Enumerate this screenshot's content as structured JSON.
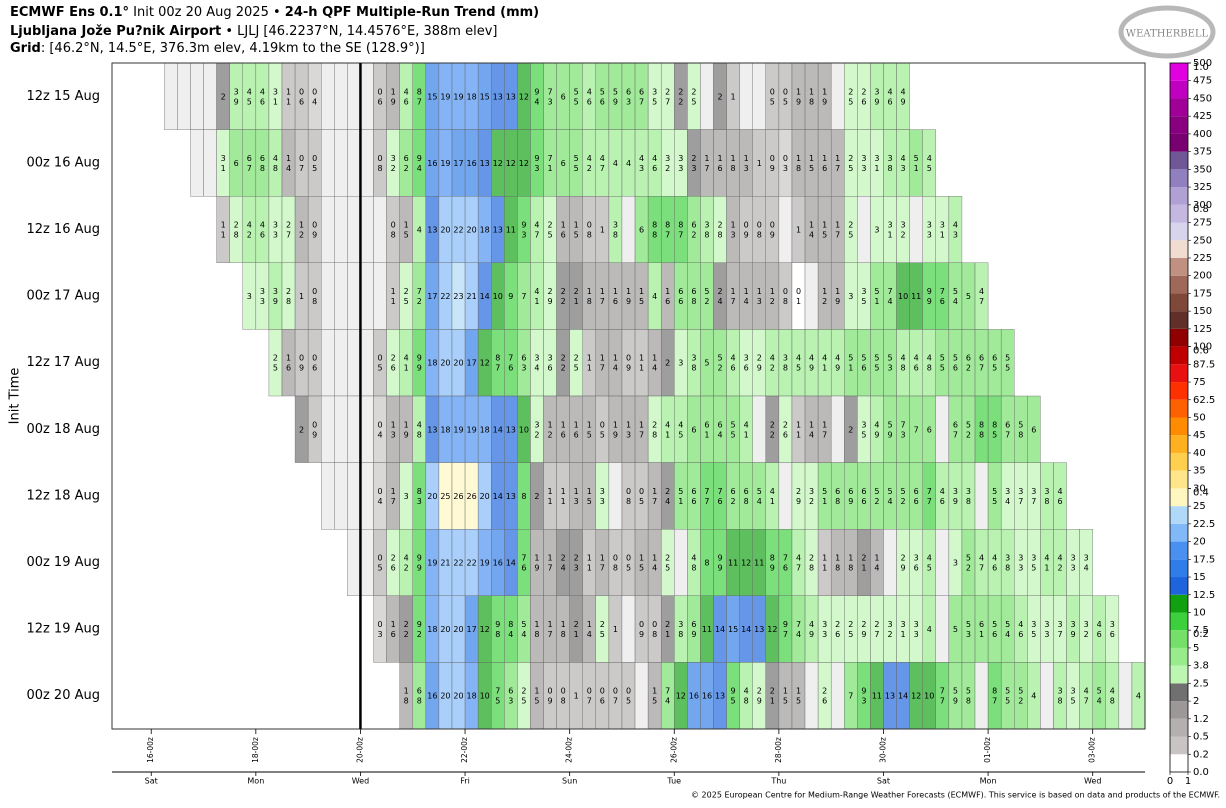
{
  "header": {
    "model": "ECMWF Ens 0.1°",
    "init": " Init 00z 20 Aug 2025 • ",
    "product": "24-h QPF Multiple-Run Trend (mm)",
    "location": "Ljubljana Jože Pu?nik Airport",
    "station": " • LJLJ [46.2237°N, 14.4576°E, 388m elev]",
    "grid_label": "Grid",
    "grid": ": [46.2°N, 14.5°E, 376.3m elev, 4.19km to the SE (128.9°)]",
    "logo": "WEATHERBELL",
    "footer": "© 2025 European Centre for Medium-Range Weather Forecasts (ECMWF). This service is based on data and products of the ECMWF."
  },
  "chart_data": {
    "type": "heatmap",
    "ylabel": "Init Time",
    "xlim": [
      -18,
      456
    ],
    "step": 6,
    "init_x": 96,
    "xticks": [
      {
        "value": 0,
        "label": "16-00z"
      },
      {
        "value": 48,
        "label": "18-00z"
      },
      {
        "value": 96,
        "label": "20-00z"
      },
      {
        "value": 144,
        "label": "22-00z"
      },
      {
        "value": 192,
        "label": "24-00z"
      },
      {
        "value": 240,
        "label": "26-00z"
      },
      {
        "value": 288,
        "label": "28-00z"
      },
      {
        "value": 336,
        "label": "30-00z"
      },
      {
        "value": 384,
        "label": "01-00z"
      },
      {
        "value": 432,
        "label": "03-00z"
      }
    ],
    "day_ticks": [
      {
        "value": 0,
        "label": "Sat"
      },
      {
        "value": 48,
        "label": "Mon"
      },
      {
        "value": 96,
        "label": "Wed"
      },
      {
        "value": 144,
        "label": "Fri"
      },
      {
        "value": 192,
        "label": "Sun"
      },
      {
        "value": 240,
        "label": "Tue"
      },
      {
        "value": 288,
        "label": "Thu"
      },
      {
        "value": 336,
        "label": "Sat"
      },
      {
        "value": 384,
        "label": "Mon"
      },
      {
        "value": 432,
        "label": "Wed"
      }
    ],
    "series": [
      {
        "name": "12z 15 Aug",
        "start": 6,
        "values": [
          null,
          null,
          null,
          null,
          2,
          3.9,
          4.5,
          4.6,
          3.1,
          1.1,
          0.6,
          0.4,
          null,
          null,
          null,
          null,
          0.6,
          1.9,
          4.6,
          8.7,
          15,
          19,
          19,
          18,
          15,
          13,
          13,
          12,
          9.4,
          7.3,
          6,
          5.5,
          4.6,
          5.6,
          5.9,
          6.3,
          6.7,
          3.5,
          2.7,
          2.2,
          2.5,
          null,
          2,
          1,
          null,
          null,
          0.5,
          0.5,
          1.9,
          1.8,
          1.9,
          null,
          2.5,
          2.6,
          3.9,
          4.6,
          4.9
        ]
      },
      {
        "name": "00z 16 Aug",
        "start": 18,
        "values": [
          null,
          null,
          3.1,
          6,
          6.7,
          6.8,
          4.8,
          1.4,
          0.7,
          0.5,
          null,
          null,
          null,
          null,
          0.8,
          3.2,
          6.2,
          9.4,
          16,
          19,
          17,
          16,
          13,
          12,
          12,
          12,
          9.3,
          7.1,
          6,
          5.5,
          4.2,
          4.7,
          4,
          4,
          4.3,
          4.6,
          3.2,
          3.3,
          2.3,
          1.7,
          1.6,
          1.8,
          1.3,
          1,
          0.9,
          0.3,
          1.8,
          1.5,
          1.6,
          1.7,
          2.5,
          3.3,
          3.1,
          3.8,
          4.3,
          5.1,
          4.5
        ]
      },
      {
        "name": "12z 16 Aug",
        "start": 30,
        "values": [
          1.1,
          2.8,
          4.2,
          4.6,
          3.3,
          2.7,
          1.2,
          0.9,
          null,
          null,
          null,
          null,
          null,
          0.8,
          1.5,
          4,
          13,
          20,
          22,
          20,
          18,
          13,
          11,
          9.3,
          4.7,
          2.5,
          1.6,
          1.5,
          0.8,
          1,
          3.8,
          null,
          6,
          8.8,
          8.7,
          8.7,
          6.2,
          3.8,
          2.8,
          1.3,
          0.9,
          0.8,
          0.9,
          null,
          1,
          1.4,
          1.5,
          1.7,
          2.5,
          null,
          3,
          3.1,
          3.2,
          null,
          3.3,
          3.1,
          4.3
        ]
      },
      {
        "name": "00z 17 Aug",
        "start": 42,
        "values": [
          3,
          3.3,
          3.9,
          2.8,
          1,
          0.8,
          null,
          null,
          null,
          null,
          null,
          1.1,
          2.5,
          7.2,
          17,
          22,
          23,
          21,
          14,
          10,
          9,
          7,
          4.1,
          2.9,
          2.2,
          2.1,
          1.8,
          1.7,
          1.6,
          1.9,
          1.5,
          4,
          1.6,
          6.6,
          6.8,
          5.2,
          2.4,
          1.7,
          1.4,
          1.3,
          1.2,
          0.8,
          0.1,
          null,
          1.2,
          1.9,
          3,
          3.5,
          5.1,
          7.4,
          10,
          11,
          9.9,
          7.6,
          5.4,
          5,
          4.7
        ]
      },
      {
        "name": "12z 17 Aug",
        "start": 54,
        "values": [
          2.5,
          1.6,
          0.9,
          0.6,
          null,
          null,
          null,
          null,
          0.5,
          2.6,
          4.1,
          9.9,
          18,
          20,
          20,
          17,
          12,
          8.7,
          7.6,
          6.3,
          3.4,
          3.6,
          2.2,
          2.5,
          1.1,
          1.7,
          1.4,
          0.9,
          1.1,
          1.4,
          2,
          3,
          3.8,
          5,
          5.2,
          4.6,
          3.6,
          2.9,
          4.2,
          3.8,
          4.5,
          4.9,
          4.1,
          4.9,
          5.1,
          5.6,
          5.5,
          5.3,
          4.8,
          4.6,
          4.8,
          5.5,
          5.6,
          6.2,
          6.7,
          6.5,
          5.5
        ]
      },
      {
        "name": "00z 18 Aug",
        "start": 66,
        "values": [
          2,
          0.9,
          null,
          null,
          null,
          null,
          0.4,
          1.3,
          1.9,
          4.8,
          13,
          18,
          19,
          19,
          18,
          14,
          13,
          10,
          3.2,
          1.2,
          1.6,
          1.6,
          1.5,
          0.5,
          1.9,
          1.3,
          1.7,
          2.8,
          4.1,
          4.5,
          6,
          6.1,
          6.4,
          5.5,
          4.1,
          null,
          2.2,
          2.6,
          1.1,
          1.4,
          1.7,
          null,
          2,
          3.5,
          4.9,
          5.9,
          7.3,
          7,
          6,
          null,
          6.7,
          5.2,
          8.8,
          8.5,
          6.7,
          5.8,
          6
        ]
      },
      {
        "name": "12z 18 Aug",
        "start": 78,
        "values": [
          null,
          null,
          null,
          null,
          0.4,
          1.7,
          3,
          8.3,
          20,
          25,
          26,
          26,
          20,
          14,
          13,
          8,
          2,
          1.1,
          1.1,
          1.3,
          1.5,
          3.3,
          null,
          0.8,
          0.5,
          1.7,
          2.4,
          5.1,
          6.6,
          7.7,
          7.6,
          6.2,
          6.8,
          5.4,
          4.1,
          null,
          2.9,
          3.2,
          5.1,
          6.8,
          6.9,
          6.6,
          5.2,
          5.4,
          5.2,
          6.6,
          7.7,
          4.6,
          3.9,
          3.8,
          null,
          5.5,
          3.4,
          3.7,
          3.7,
          3.8,
          4.6
        ]
      },
      {
        "name": "00z 19 Aug",
        "start": 90,
        "values": [
          null,
          null,
          0.5,
          2.6,
          4.2,
          9.9,
          19,
          21,
          22,
          22,
          19,
          16,
          14,
          7.6,
          1.9,
          1.7,
          2.4,
          2.3,
          1.1,
          1.7,
          0.8,
          0.5,
          1.5,
          1.4,
          2.5,
          null,
          4.8,
          8,
          9.9,
          11,
          12,
          11,
          8.9,
          7.6,
          4.7,
          2.8,
          1.1,
          1.8,
          1.8,
          2.1,
          1.4,
          null,
          2.9,
          3.6,
          4.5,
          null,
          3,
          5.2,
          4.7,
          4.6,
          3.8,
          3.3,
          3.5,
          4.1,
          4.2,
          3.3,
          3.4
        ]
      },
      {
        "name": "12z 19 Aug",
        "start": 102,
        "values": [
          0.3,
          1.6,
          2.2,
          9.2,
          18,
          20,
          20,
          17,
          12,
          9.8,
          8.4,
          5.4,
          1.8,
          1.7,
          1.8,
          2.1,
          1.4,
          2.5,
          1,
          null,
          0.9,
          0.8,
          2.1,
          3.8,
          6.9,
          11,
          14,
          15,
          14,
          13,
          12,
          9.7,
          7.4,
          4.9,
          3.3,
          2.6,
          2.5,
          2.9,
          2.7,
          3.2,
          3.1,
          3.3,
          4,
          null,
          5,
          5.3,
          6.1,
          5.6,
          5.4,
          4.6,
          3.5,
          3.3,
          3.7,
          3.9,
          3.2,
          4.6,
          3.6
        ]
      },
      {
        "name": "00z 20 Aug",
        "start": 114,
        "values": [
          1.8,
          6.8,
          16,
          20,
          20,
          18,
          10,
          7.5,
          6.3,
          2.5,
          1.5,
          0.9,
          0.8,
          1,
          0.7,
          0.6,
          0.7,
          0.5,
          null,
          1.5,
          7.4,
          12,
          16,
          16,
          13,
          9.5,
          4.8,
          2.9,
          2.1,
          1.5,
          1.5,
          null,
          2.6,
          null,
          7,
          9.3,
          11,
          13,
          14,
          12,
          10,
          7.7,
          5.9,
          5.8,
          null,
          8.7,
          5.5,
          5.2,
          4,
          null,
          3.8,
          3.5,
          4.7,
          5.4,
          4.8,
          null,
          4
        ]
      }
    ],
    "colorbar": {
      "levels": [
        {
          "value": 0,
          "label": "0.0"
        },
        0.2,
        0.5,
        1.2,
        2,
        2.5,
        3.8,
        5,
        7.5,
        10,
        12.5,
        15,
        17.5,
        20,
        22.5,
        25,
        30,
        35,
        40,
        45,
        50,
        62.5,
        75,
        87.5,
        100,
        125,
        150,
        175,
        200,
        225,
        250,
        275,
        300,
        325,
        350,
        375,
        400,
        425,
        450,
        475,
        500
      ],
      "colors": [
        "#ffffff",
        "#c8c4c4",
        "#b4b0b0",
        "#9c9898",
        "#707070",
        "#bdf5b2",
        "#98ec8c",
        "#74e06a",
        "#3cd03c",
        "#10a010",
        "#1e64dc",
        "#2f7de8",
        "#4a90f0",
        "#80b8f8",
        "#b0d8f8",
        "#fff6c0",
        "#ffe68a",
        "#ffd050",
        "#ffb020",
        "#ff8c00",
        "#ff6000",
        "#ff3000",
        "#e81010",
        "#c00000",
        "#900000",
        "#603028",
        "#804838",
        "#a06858",
        "#c09080",
        "#f0dcd0",
        "#d8d4ec",
        "#c4b8e0",
        "#b0a0d4",
        "#9080c0",
        "#705898",
        "#780070",
        "#880080",
        "#a00098",
        "#c000c0",
        "#e000e0"
      ],
      "ylim": [
        0,
        1
      ],
      "yticks": [
        0.2,
        0.4,
        0.6,
        0.8,
        {
          "value": 1,
          "label": "1.0"
        }
      ],
      "xlim": [
        0,
        1
      ],
      "xticks": [
        0,
        1
      ]
    }
  }
}
